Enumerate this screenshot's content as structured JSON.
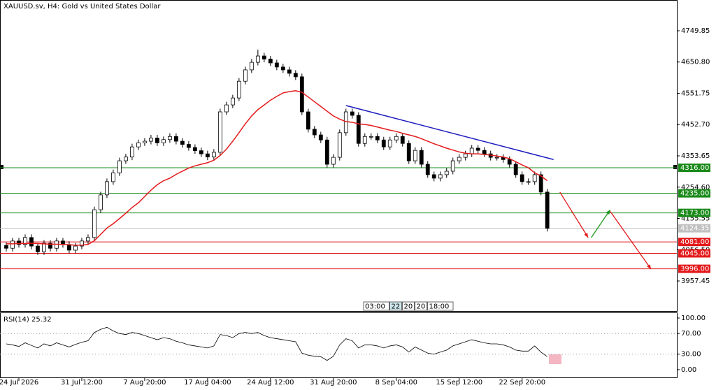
{
  "chart_data": [
    {
      "type": "candlestick",
      "title": "XAUUSD.sv, H4:  Gold vs United States Dollar",
      "categories": [
        null,
        null,
        "24 Jul 2026",
        null,
        null,
        null,
        null,
        null,
        null,
        null,
        null,
        null,
        "31 Jul 12:00",
        null,
        null,
        null,
        null,
        null,
        null,
        null,
        null,
        null,
        "7 Aug 20:00",
        null,
        null,
        null,
        null,
        null,
        null,
        null,
        null,
        null,
        "17 Aug 04:00",
        null,
        null,
        null,
        null,
        null,
        null,
        null,
        null,
        null,
        "24 Aug 12:00",
        null,
        null,
        null,
        null,
        null,
        null,
        null,
        null,
        null,
        "31 Aug 20:00",
        null,
        null,
        null,
        null,
        null,
        null,
        null,
        null,
        null,
        "8 Sep 04:00",
        null,
        null,
        null,
        null,
        null,
        null,
        null,
        null,
        null,
        "15 Sep 12:00",
        null,
        null,
        null,
        null,
        null,
        null,
        null,
        null,
        null,
        "22 Sep 20:00",
        null,
        null,
        null,
        null
      ],
      "ohlc": [
        [
          4070,
          4080,
          4051,
          4061
        ],
        [
          4061,
          4094,
          4051,
          4084
        ],
        [
          4084,
          4094,
          4063,
          4073
        ],
        [
          4073,
          4105,
          4063,
          4095
        ],
        [
          4095,
          4105,
          4058,
          4068
        ],
        [
          4068,
          4078,
          4040,
          4050
        ],
        [
          4050,
          4087,
          4040,
          4077
        ],
        [
          4077,
          4087,
          4051,
          4061
        ],
        [
          4061,
          4094,
          4051,
          4084
        ],
        [
          4084,
          4094,
          4063,
          4073
        ],
        [
          4073,
          4083,
          4045,
          4055
        ],
        [
          4055,
          4078,
          4045,
          4068
        ],
        [
          4068,
          4094,
          4058,
          4084
        ],
        [
          4084,
          4105,
          4074,
          4095
        ],
        [
          4095,
          4193,
          4085,
          4183
        ],
        [
          4183,
          4240,
          4173,
          4230
        ],
        [
          4230,
          4282,
          4220,
          4272
        ],
        [
          4272,
          4310,
          4262,
          4300
        ],
        [
          4300,
          4348,
          4290,
          4338
        ],
        [
          4338,
          4360,
          4328,
          4350
        ],
        [
          4350,
          4392,
          4340,
          4382
        ],
        [
          4382,
          4405,
          4372,
          4395
        ],
        [
          4395,
          4410,
          4385,
          4400
        ],
        [
          4400,
          4420,
          4390,
          4410
        ],
        [
          4410,
          4420,
          4385,
          4395
        ],
        [
          4395,
          4415,
          4385,
          4405
        ],
        [
          4405,
          4425,
          4395,
          4415
        ],
        [
          4415,
          4425,
          4390,
          4400
        ],
        [
          4400,
          4410,
          4380,
          4390
        ],
        [
          4390,
          4400,
          4370,
          4380
        ],
        [
          4380,
          4390,
          4360,
          4370
        ],
        [
          4370,
          4380,
          4350,
          4360
        ],
        [
          4360,
          4370,
          4340,
          4350
        ],
        [
          4350,
          4375,
          4340,
          4365
        ],
        [
          4365,
          4503,
          4355,
          4493
        ],
        [
          4493,
          4525,
          4483,
          4515
        ],
        [
          4515,
          4547,
          4505,
          4537
        ],
        [
          4537,
          4600,
          4527,
          4590
        ],
        [
          4590,
          4636,
          4580,
          4626
        ],
        [
          4626,
          4660,
          4616,
          4650
        ],
        [
          4650,
          4690,
          4640,
          4670
        ],
        [
          4670,
          4680,
          4650,
          4660
        ],
        [
          4660,
          4670,
          4638,
          4648
        ],
        [
          4648,
          4658,
          4625,
          4635
        ],
        [
          4635,
          4645,
          4616,
          4626
        ],
        [
          4626,
          4636,
          4605,
          4615
        ],
        [
          4615,
          4625,
          4594,
          4604
        ],
        [
          4604,
          4614,
          4483,
          4493
        ],
        [
          4493,
          4503,
          4428,
          4438
        ],
        [
          4438,
          4448,
          4410,
          4420
        ],
        [
          4420,
          4430,
          4394,
          4404
        ],
        [
          4404,
          4414,
          4317,
          4327
        ],
        [
          4327,
          4359,
          4317,
          4349
        ],
        [
          4349,
          4437,
          4339,
          4427
        ],
        [
          4427,
          4503,
          4417,
          4493
        ],
        [
          4493,
          4503,
          4472,
          4482
        ],
        [
          4482,
          4492,
          4383,
          4393
        ],
        [
          4393,
          4425,
          4383,
          4415
        ],
        [
          4415,
          4425,
          4405,
          4415
        ],
        [
          4415,
          4425,
          4394,
          4404
        ],
        [
          4404,
          4414,
          4372,
          4382
        ],
        [
          4382,
          4414,
          4372,
          4404
        ],
        [
          4404,
          4425,
          4394,
          4415
        ],
        [
          4415,
          4425,
          4383,
          4393
        ],
        [
          4393,
          4403,
          4328,
          4338
        ],
        [
          4338,
          4381,
          4328,
          4371
        ],
        [
          4371,
          4381,
          4317,
          4327
        ],
        [
          4327,
          4337,
          4284,
          4294
        ],
        [
          4294,
          4304,
          4273,
          4283
        ],
        [
          4283,
          4304,
          4273,
          4294
        ],
        [
          4294,
          4315,
          4284,
          4305
        ],
        [
          4305,
          4348,
          4295,
          4338
        ],
        [
          4338,
          4359,
          4328,
          4349
        ],
        [
          4349,
          4370,
          4339,
          4360
        ],
        [
          4360,
          4388,
          4350,
          4378
        ],
        [
          4378,
          4388,
          4361,
          4371
        ],
        [
          4371,
          4381,
          4350,
          4360
        ],
        [
          4360,
          4370,
          4339,
          4349
        ],
        [
          4349,
          4359,
          4339,
          4349
        ],
        [
          4349,
          4359,
          4332,
          4342
        ],
        [
          4342,
          4352,
          4317,
          4327
        ],
        [
          4327,
          4337,
          4284,
          4294
        ],
        [
          4294,
          4304,
          4262,
          4272
        ],
        [
          4272,
          4282,
          4262,
          4272
        ],
        [
          4272,
          4304,
          4262,
          4294
        ],
        [
          4294,
          4304,
          4229,
          4239
        ],
        [
          4239,
          4249,
          4114,
          4124.35
        ]
      ],
      "up_color": "#ffffff",
      "down_color": "#000000",
      "moving_average": {
        "color": "#e31a1c",
        "values": [
          4075,
          4075,
          4076,
          4076,
          4077,
          4076,
          4075,
          4074,
          4074,
          4073,
          4072,
          4071,
          4071,
          4073,
          4085,
          4105,
          4125,
          4139,
          4155,
          4172,
          4190,
          4205,
          4225,
          4245,
          4262,
          4275,
          4283,
          4295,
          4305,
          4315,
          4322,
          4327,
          4332,
          4340,
          4355,
          4375,
          4400,
          4427,
          4455,
          4480,
          4500,
          4515,
          4530,
          4542,
          4553,
          4557,
          4560,
          4555,
          4540,
          4525,
          4510,
          4495,
          4480,
          4470,
          4462,
          4460,
          4455,
          4453,
          4450,
          4445,
          4440,
          4435,
          4431,
          4425,
          4420,
          4415,
          4408,
          4400,
          4392,
          4385,
          4378,
          4372,
          4366,
          4362,
          4360,
          4360,
          4358,
          4356,
          4353,
          4350,
          4345,
          4335,
          4325,
          4316,
          4300,
          4290,
          4275
        ]
      },
      "trendline": {
        "color": "#1f1fbf",
        "x": [
          54,
          87
        ],
        "values": [
          4513,
          4342
        ]
      },
      "arrows": [
        {
          "color": "#e31a1c",
          "x": [
            88,
            92.5
          ],
          "values": [
            4239,
            4095
          ]
        },
        {
          "color": "#1a9a1a",
          "x": [
            93,
            96
          ],
          "values": [
            4095,
            4183
          ]
        },
        {
          "color": "#e31a1c",
          "x": [
            96,
            102.5
          ],
          "values": [
            4178,
            3995
          ]
        }
      ],
      "levels": [
        {
          "value": 4316,
          "label": "4316.00",
          "color": "#1a8a1a"
        },
        {
          "value": 4235,
          "label": "4235.00",
          "color": "#1a8a1a"
        },
        {
          "value": 4173,
          "label": "4173.00",
          "color": "#1a8a1a"
        },
        {
          "value": 4081,
          "label": "4081.00",
          "color": "#e31a1c"
        },
        {
          "value": 4045,
          "label": "4045.00",
          "color": "#e31a1c"
        },
        {
          "value": 3996,
          "label": "3996.00",
          "color": "#e31a1c"
        }
      ],
      "current_price": {
        "value": 4124.35,
        "label": "4124.35",
        "color": "#c0c0c0"
      },
      "scroll_labels": [
        "03:00",
        "22",
        "20",
        "20",
        "18:00"
      ],
      "xlim": [
        -1,
        106.6
      ],
      "ylim": [
        3862.3,
        4847.2
      ],
      "yticks": [
        4749.85,
        {
          "value": 4650.8,
          "label": "4650.80"
        },
        4551.75,
        {
          "value": 4452.7,
          "label": "4452.70"
        },
        4353.65,
        {
          "value": 4254.6,
          "label": "4254.60"
        },
        4155.55,
        {
          "value": 4056.5,
          "label": "4056.50"
        },
        3957.45
      ]
    },
    {
      "type": "line",
      "title": "RSI(14) 25.32",
      "color": "#000000",
      "values": [
        50,
        48,
        45,
        52,
        47,
        42,
        50,
        46,
        52,
        48,
        44,
        49,
        53,
        56,
        72,
        78,
        82,
        75,
        70,
        68,
        72,
        70,
        66,
        62,
        58,
        62,
        60,
        55,
        52,
        48,
        46,
        44,
        42,
        46,
        68,
        66,
        62,
        70,
        72,
        70,
        72,
        66,
        62,
        60,
        58,
        56,
        54,
        32,
        28,
        26,
        25,
        18,
        26,
        48,
        60,
        56,
        42,
        48,
        48,
        46,
        42,
        46,
        48,
        44,
        34,
        44,
        38,
        32,
        30,
        34,
        38,
        46,
        50,
        54,
        58,
        55,
        52,
        50,
        50,
        48,
        44,
        38,
        36,
        36,
        46,
        34,
        25.32
      ],
      "ylim": [
        -15,
        109.5
      ],
      "yticks": [
        {
          "value": 100,
          "label": "100.00"
        },
        {
          "value": 70,
          "label": "70.00"
        },
        {
          "value": 30,
          "label": "30.00"
        },
        {
          "value": 0,
          "label": "0.00"
        }
      ],
      "grid": "dotted"
    }
  ]
}
